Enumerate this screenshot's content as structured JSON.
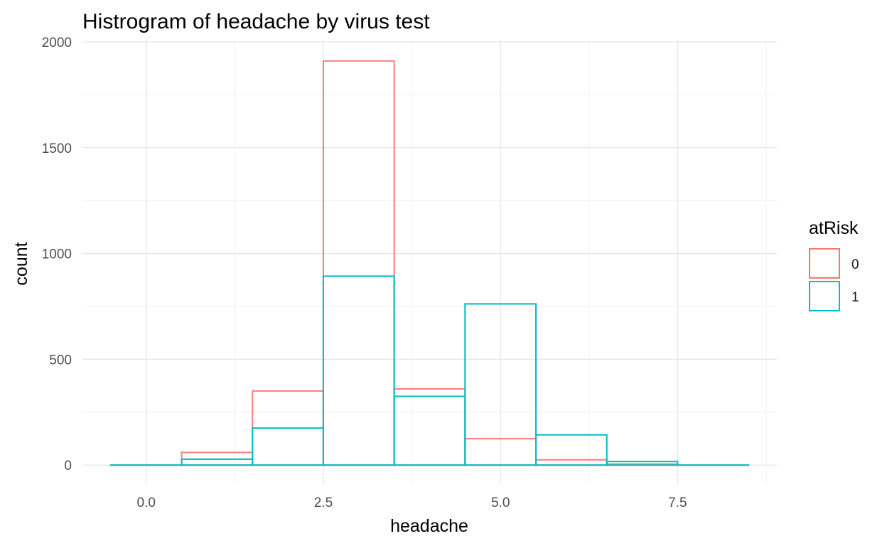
{
  "chart_data": {
    "type": "histogram",
    "title": "Histrogram of headache by virus test",
    "xlabel": "headache",
    "ylabel": "count",
    "xlim": [
      -0.9,
      8.9
    ],
    "ylim": [
      -90,
      2010
    ],
    "x_ticks": [
      {
        "value": 0,
        "label": "0.0"
      },
      {
        "value": 2.5,
        "label": "2.5"
      },
      {
        "value": 5,
        "label": "5.0"
      },
      {
        "value": 7.5,
        "label": "7.5"
      }
    ],
    "y_ticks": [
      {
        "value": 0,
        "label": "0"
      },
      {
        "value": 500,
        "label": "500"
      },
      {
        "value": 1000,
        "label": "1000"
      },
      {
        "value": 1500,
        "label": "1500"
      },
      {
        "value": 2000,
        "label": "2000"
      }
    ],
    "grid": true,
    "legend_position": "right",
    "legend_title": "atRisk",
    "bins": [
      0,
      1,
      2,
      3,
      4,
      5,
      6,
      7,
      8
    ],
    "binwidth": 1,
    "series": [
      {
        "name": "0",
        "color": "#F8766D",
        "values": [
          0,
          60,
          350,
          1910,
          360,
          125,
          25,
          5,
          0
        ]
      },
      {
        "name": "1",
        "color": "#00BFC4",
        "values": [
          0,
          28,
          175,
          893,
          325,
          762,
          143,
          17,
          0
        ]
      }
    ]
  }
}
